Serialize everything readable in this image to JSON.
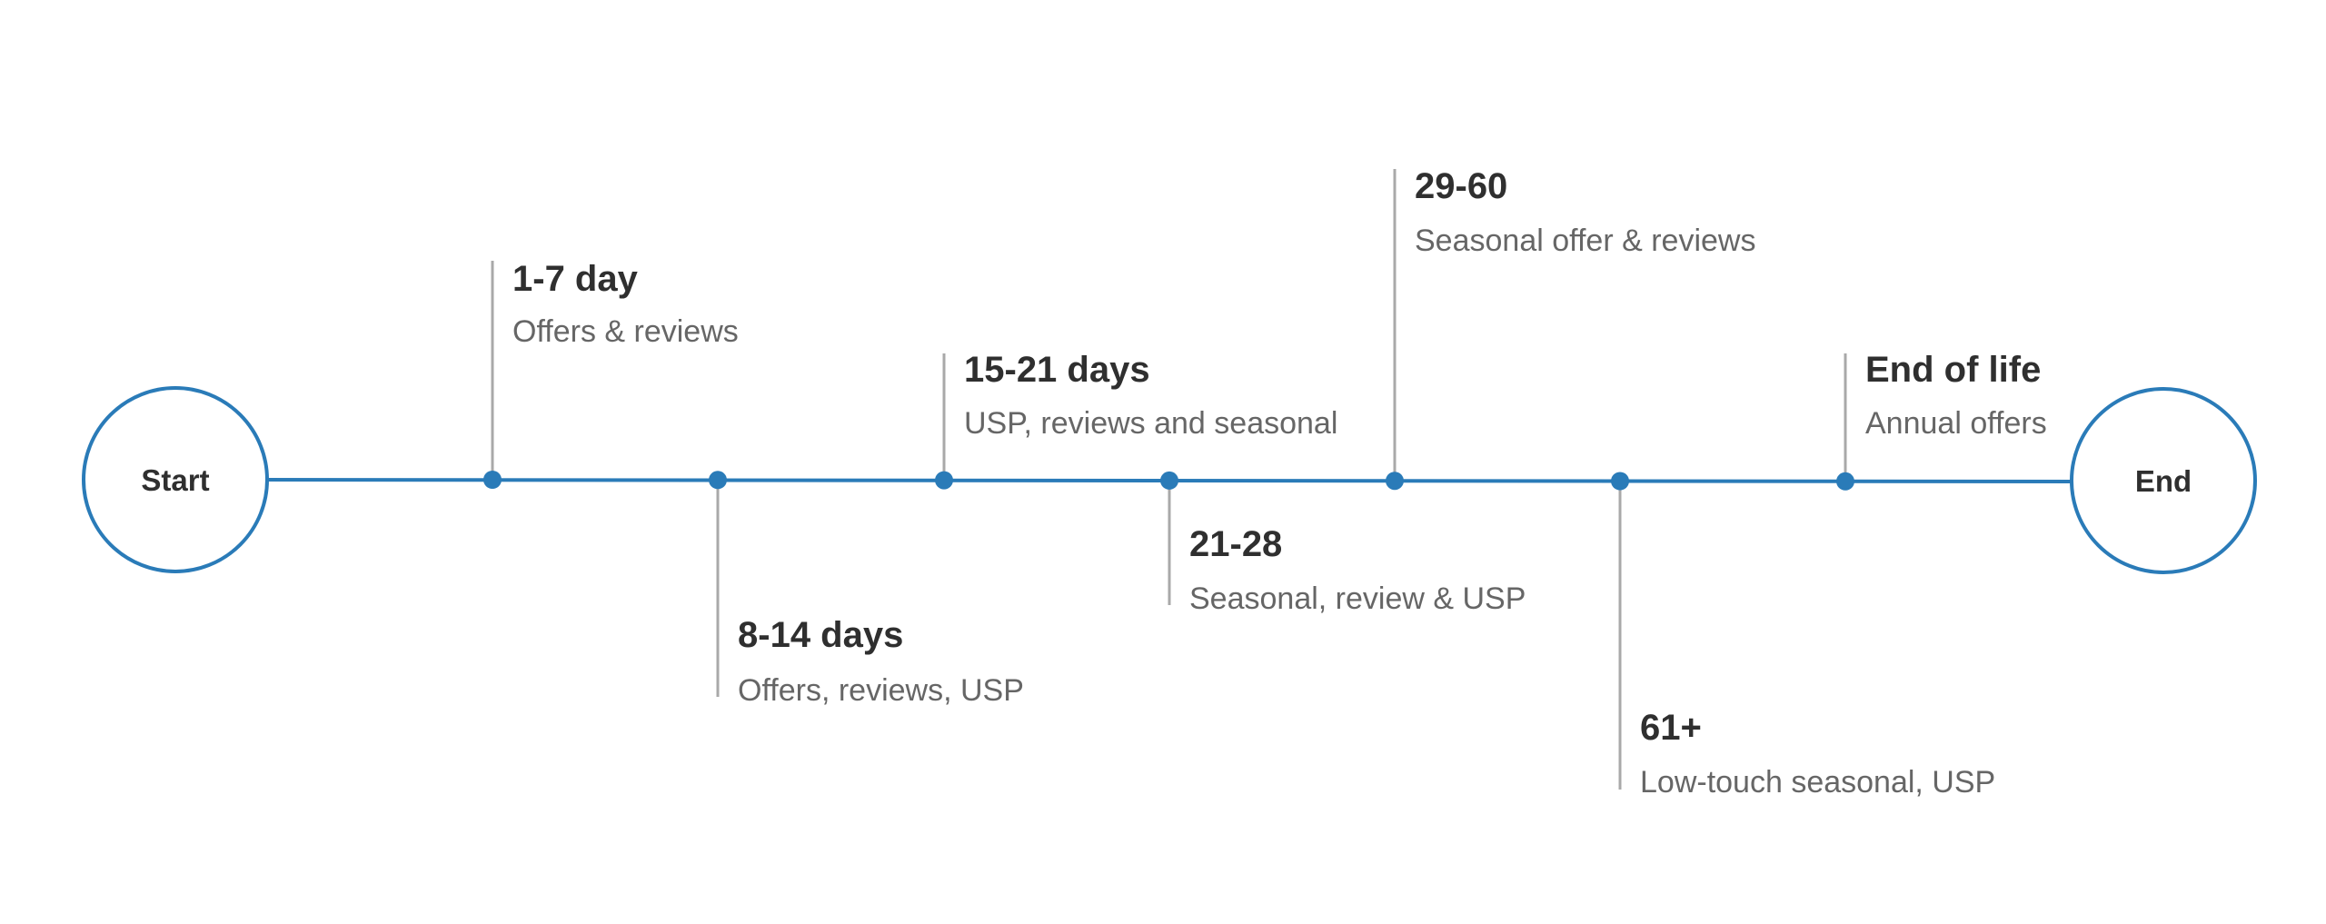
{
  "colors": {
    "line": "#2a7bb8",
    "connector": "#a9a9a9",
    "title": "#2f2f2f",
    "subtitle": "#666666"
  },
  "start_label": "Start",
  "end_label": "End",
  "milestones": [
    {
      "title": "1-7 day",
      "subtitle": "Offers & reviews",
      "side": "above"
    },
    {
      "title": "8-14 days",
      "subtitle": "Offers, reviews, USP",
      "side": "below"
    },
    {
      "title": "15-21 days",
      "subtitle": "USP, reviews and seasonal",
      "side": "above"
    },
    {
      "title": "21-28",
      "subtitle": "Seasonal, review & USP",
      "side": "below"
    },
    {
      "title": "29-60",
      "subtitle": "Seasonal offer & reviews",
      "side": "above"
    },
    {
      "title": "61+",
      "subtitle": "Low-touch seasonal, USP",
      "side": "below"
    },
    {
      "title": "End of life",
      "subtitle": "Annual offers",
      "side": "above"
    }
  ]
}
